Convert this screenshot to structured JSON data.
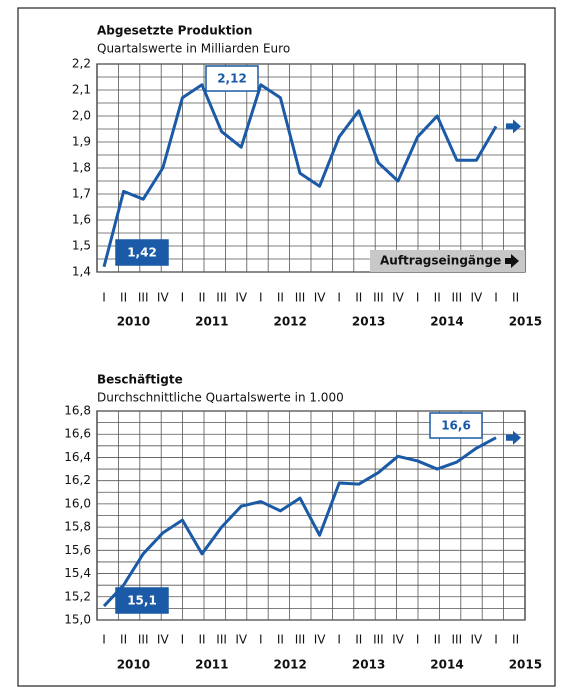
{
  "chart_data": [
    {
      "type": "line",
      "title": "Abgesetzte Produktion",
      "subtitle": "Quartalswerte in Milliarden Euro",
      "categories": [
        "I",
        "II",
        "III",
        "IV",
        "I",
        "II",
        "III",
        "IV",
        "I",
        "II",
        "III",
        "IV",
        "I",
        "II",
        "III",
        "IV",
        "I",
        "II",
        "III",
        "IV",
        "I",
        "II"
      ],
      "years": [
        "2010",
        "2011",
        "2012",
        "2013",
        "2014",
        "2015"
      ],
      "values": [
        1.42,
        1.71,
        1.68,
        1.8,
        2.07,
        2.12,
        1.94,
        1.88,
        2.12,
        2.07,
        1.78,
        1.73,
        1.92,
        2.02,
        1.82,
        1.75,
        1.92,
        2.0,
        1.83,
        1.83,
        1.96,
        null
      ],
      "value_labels": [
        "1,42",
        null,
        null,
        null,
        null,
        "2,12",
        null,
        null,
        null,
        null,
        null,
        null,
        null,
        null,
        null,
        null,
        null,
        null,
        null,
        null,
        null,
        null
      ],
      "note": "Auftragseingänge",
      "color": "#1b5aa6",
      "grid": true,
      "ylim": [
        1.4,
        2.2
      ],
      "yticks": [
        {
          "value": 1.4,
          "label": "1,4"
        },
        {
          "value": 1.5,
          "label": "1,5"
        },
        {
          "value": 1.6,
          "label": "1,6"
        },
        {
          "value": 1.7,
          "label": "1,7"
        },
        {
          "value": 1.8,
          "label": "1,8"
        },
        {
          "value": 1.9,
          "label": "1,9"
        },
        {
          "value": 2.0,
          "label": "2,0"
        },
        {
          "value": 2.1,
          "label": "2,1"
        },
        {
          "value": 2.2,
          "label": "2,2"
        }
      ]
    },
    {
      "type": "line",
      "title": "Beschäftigte",
      "subtitle": "Durchschnittliche Quartalswerte in 1.000",
      "categories": [
        "I",
        "II",
        "III",
        "IV",
        "I",
        "II",
        "III",
        "IV",
        "I",
        "II",
        "III",
        "IV",
        "I",
        "II",
        "III",
        "IV",
        "I",
        "II",
        "III",
        "IV",
        "I",
        "II"
      ],
      "years": [
        "2010",
        "2011",
        "2012",
        "2013",
        "2014",
        "2015"
      ],
      "values": [
        15.12,
        15.3,
        15.57,
        15.75,
        15.86,
        15.57,
        15.8,
        15.98,
        16.02,
        15.94,
        16.05,
        15.73,
        16.18,
        16.17,
        16.27,
        16.41,
        16.37,
        16.3,
        16.36,
        16.48,
        16.57,
        null
      ],
      "value_labels": [
        "15,1",
        null,
        null,
        null,
        null,
        null,
        null,
        null,
        null,
        null,
        null,
        null,
        null,
        null,
        null,
        null,
        null,
        null,
        null,
        null,
        "16,6",
        null
      ],
      "color": "#1b5aa6",
      "grid": true,
      "ylim": [
        15.0,
        16.8
      ],
      "yticks": [
        {
          "value": 15.0,
          "label": "15,0"
        },
        {
          "value": 15.2,
          "label": "15,2"
        },
        {
          "value": 15.4,
          "label": "15,4"
        },
        {
          "value": 15.6,
          "label": "15,6"
        },
        {
          "value": 15.8,
          "label": "15,8"
        },
        {
          "value": 16.0,
          "label": "16,0"
        },
        {
          "value": 16.2,
          "label": "16,2"
        },
        {
          "value": 16.4,
          "label": "16,4"
        },
        {
          "value": 16.6,
          "label": "16,6"
        },
        {
          "value": 16.8,
          "label": "16,8"
        }
      ]
    }
  ]
}
